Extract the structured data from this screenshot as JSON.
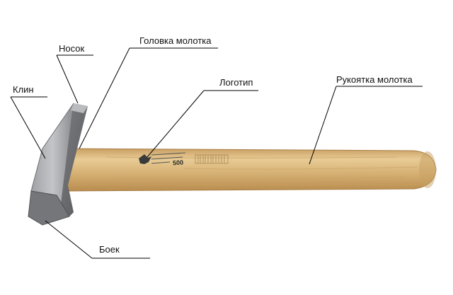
{
  "labels": {
    "nosok": "Носок",
    "golovka": "Головка молотка",
    "klin": "Клин",
    "logotip": "Логотип",
    "rukoyatka": "Рукоятка молотка",
    "boek": "Боек"
  },
  "logo": {
    "weight": "500"
  },
  "colors": {
    "handle": "#d8b377",
    "handle_light": "#e8cc95",
    "handle_dark": "#b98d4f",
    "head_light": "#a9abaf",
    "head_mid": "#8c8e92",
    "head_dark": "#5e6064",
    "leader": "#000000"
  }
}
